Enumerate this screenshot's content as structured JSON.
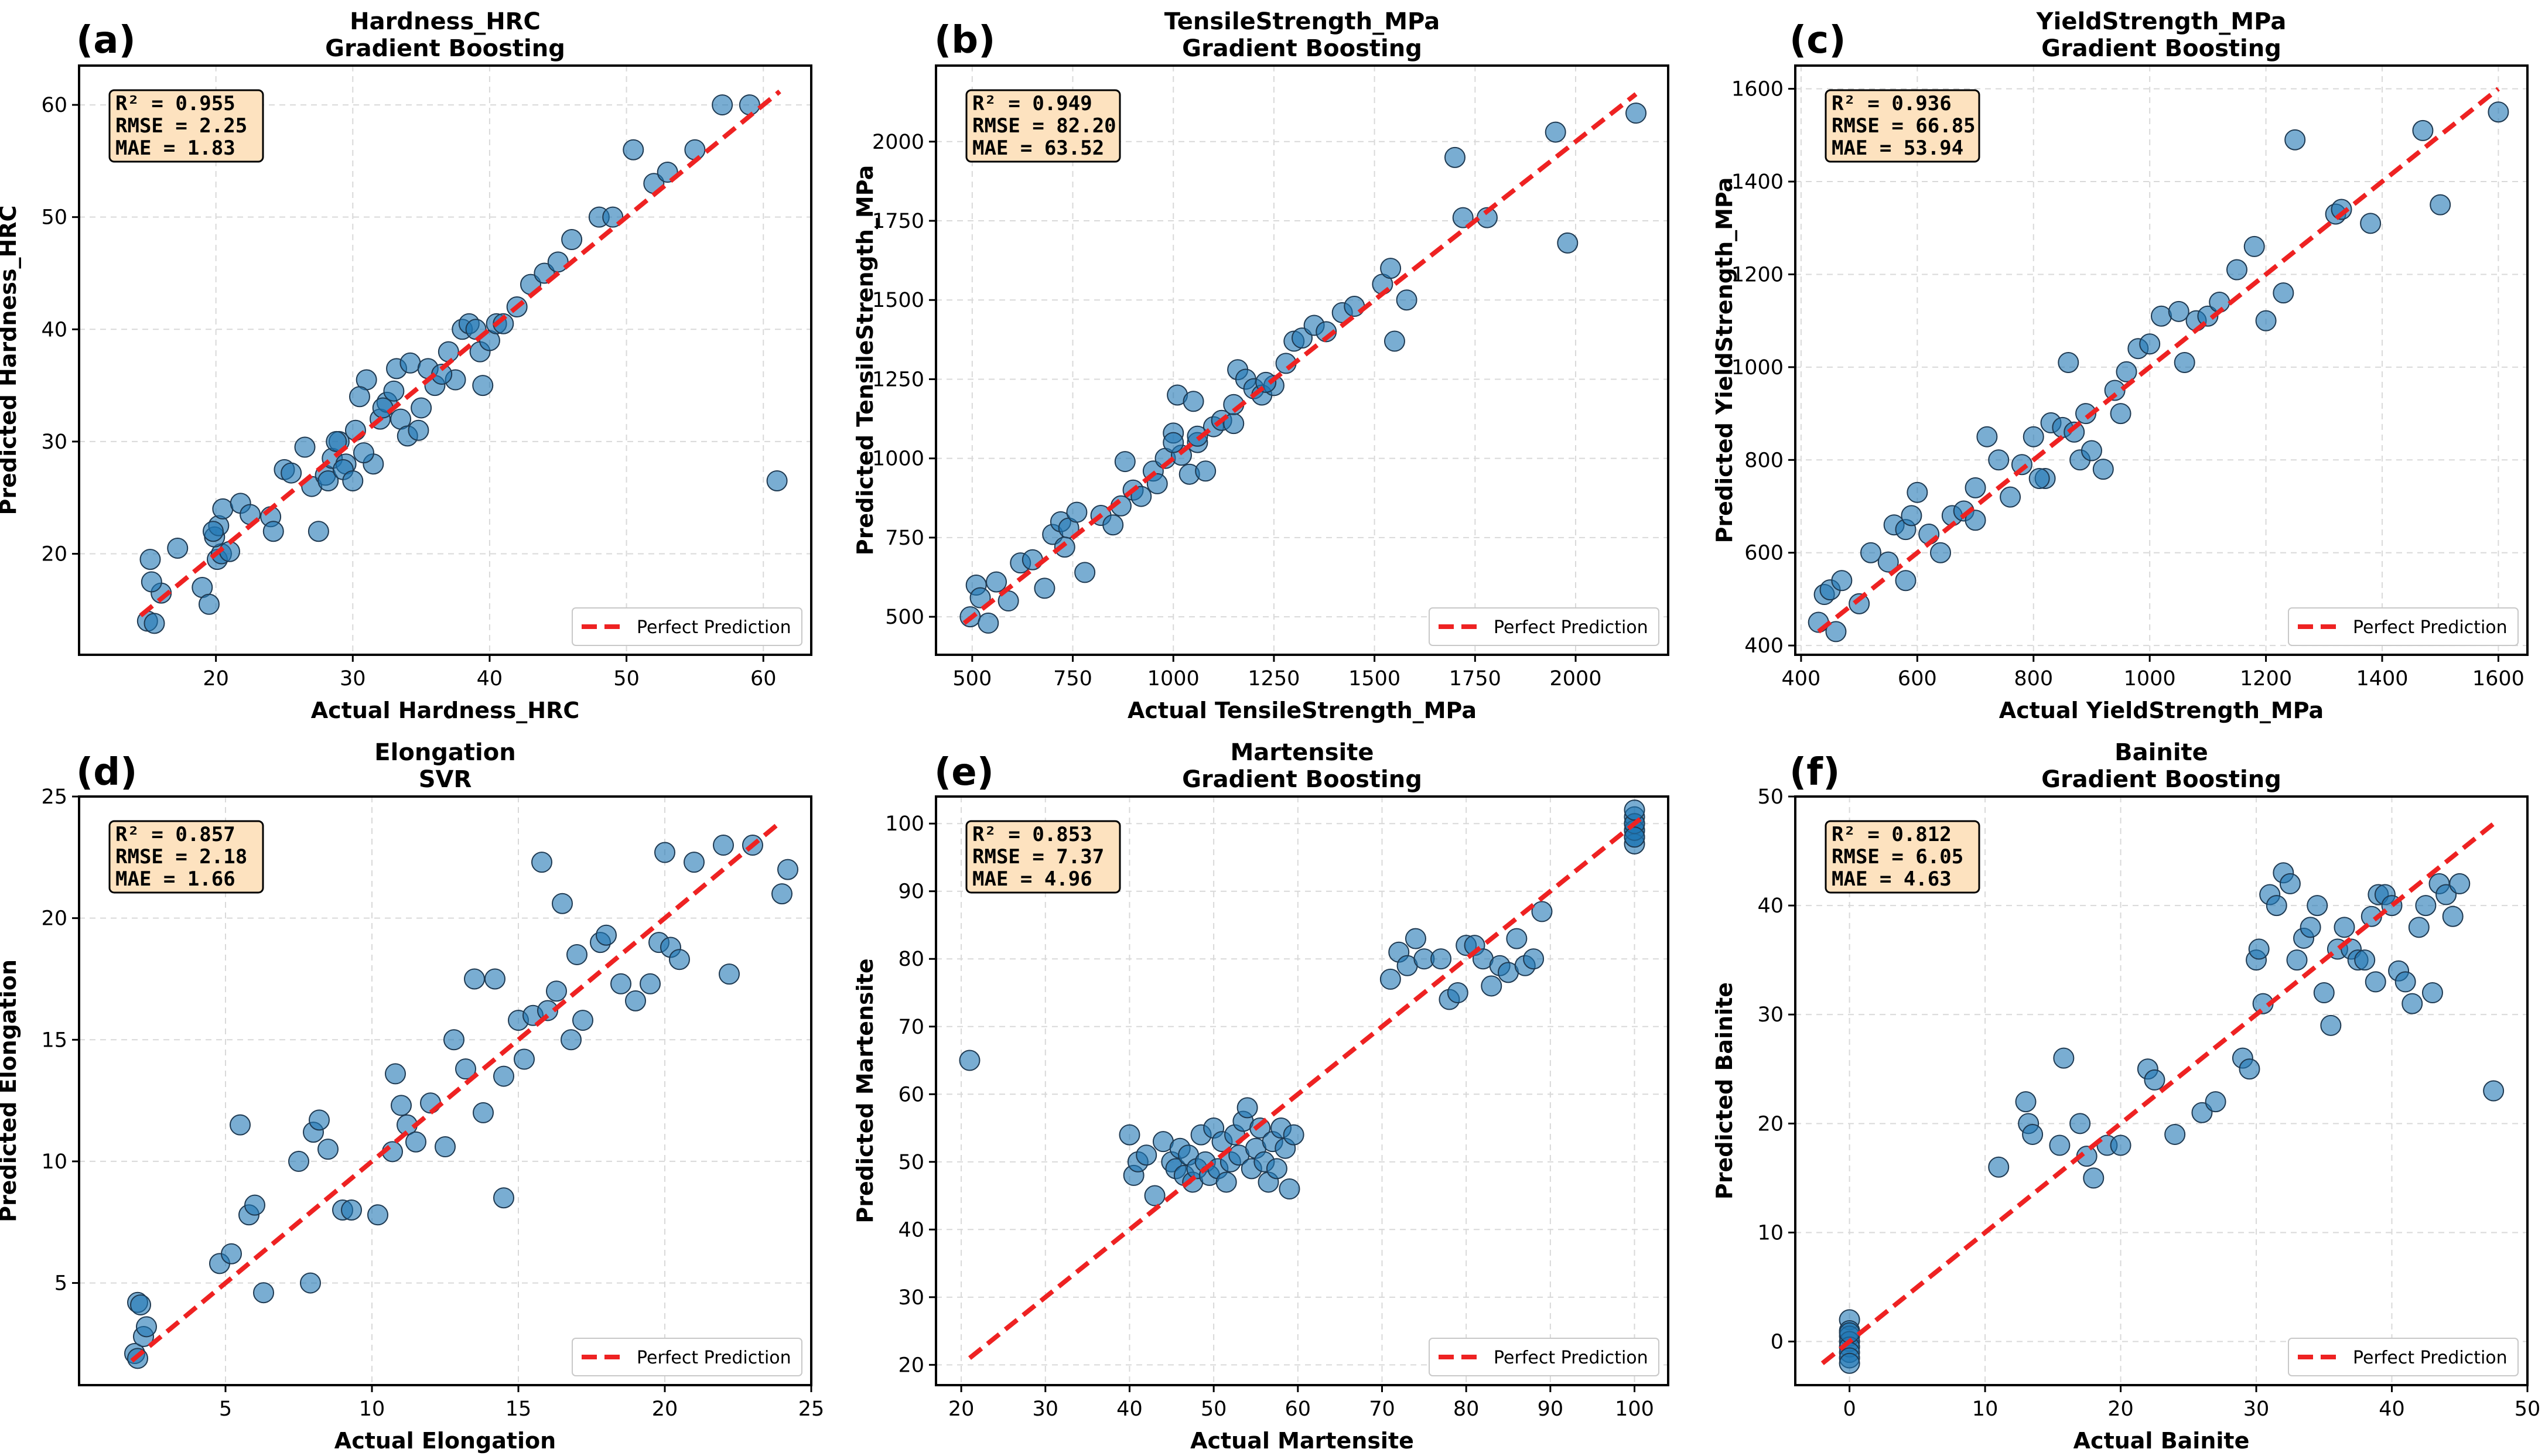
{
  "legend_label": "Perfect Prediction",
  "chart_data": [
    {
      "type": "scatter",
      "panel_label": "(a)",
      "title_line1": "Hardness_HRC",
      "title_line2": "Gradient Boosting",
      "xlabel": "Actual Hardness_HRC",
      "ylabel": "Predicted Hardness_HRC",
      "xlim": [
        10,
        63.5
      ],
      "ylim": [
        11,
        63.5
      ],
      "xticks": [
        20,
        30,
        40,
        50,
        60
      ],
      "yticks": [
        20,
        30,
        40,
        50,
        60
      ],
      "stats": [
        "R² = 0.955",
        "RMSE = 2.25",
        "MAE = 1.83"
      ],
      "ideal_line": [
        14.5,
        61.2
      ],
      "x": [
        15.0,
        15.5,
        16.0,
        15.3,
        15.2,
        17.2,
        19.0,
        20.1,
        20.4,
        21.0,
        19.9,
        20.2,
        19.8,
        19.5,
        20.5,
        21.8,
        22.5,
        24.0,
        24.2,
        25.0,
        25.5,
        26.5,
        27.0,
        28.0,
        28.2,
        28.5,
        29.0,
        29.5,
        29.3,
        30.0,
        30.2,
        31.0,
        30.5,
        31.5,
        32.0,
        32.5,
        33.0,
        33.2,
        33.5,
        34.0,
        34.2,
        35.0,
        35.5,
        36.0,
        37.0,
        37.5,
        38.0,
        38.5,
        39.0,
        39.3,
        39.5,
        40.0,
        40.5,
        41.0,
        42.0,
        43.0,
        44.0,
        45.0,
        46.0,
        48.0,
        49.0,
        50.5,
        52.0,
        53.0,
        55.0,
        57.0,
        59.0,
        61.0,
        27.5,
        28.8,
        30.8,
        32.2,
        34.8,
        36.5
      ],
      "y": [
        14.0,
        13.8,
        16.5,
        17.5,
        19.5,
        20.5,
        17.0,
        19.5,
        20.0,
        20.2,
        21.5,
        22.5,
        22.0,
        15.5,
        24.0,
        24.5,
        23.5,
        23.3,
        22.0,
        27.5,
        27.2,
        29.5,
        26.0,
        27.0,
        26.5,
        28.5,
        30.0,
        28.0,
        27.5,
        26.5,
        31.0,
        35.5,
        34.0,
        28.0,
        32.0,
        33.5,
        34.5,
        36.5,
        32.0,
        30.5,
        37.0,
        33.0,
        36.5,
        35.0,
        38.0,
        35.5,
        40.0,
        40.5,
        40.0,
        38.0,
        35.0,
        39.0,
        40.5,
        40.5,
        42.0,
        44.0,
        45.0,
        46.0,
        48.0,
        50.0,
        50.0,
        56.0,
        53.0,
        54.0,
        56.0,
        60.0,
        60.0,
        26.5,
        22.0,
        30.0,
        29.0,
        33.0,
        31.0,
        36.0
      ]
    },
    {
      "type": "scatter",
      "panel_label": "(b)",
      "title_line1": "TensileStrength_MPa",
      "title_line2": "Gradient Boosting",
      "xlabel": "Actual TensileStrength_MPa",
      "ylabel": "Predicted TensileStrength_MPa",
      "xlim": [
        410,
        2230
      ],
      "ylim": [
        380,
        2240
      ],
      "xticks": [
        500,
        750,
        1000,
        1250,
        1500,
        1750,
        2000
      ],
      "yticks": [
        500,
        750,
        1000,
        1250,
        1500,
        1750,
        2000
      ],
      "stats": [
        "R² = 0.949",
        "RMSE = 82.20",
        "MAE = 63.52"
      ],
      "ideal_line": [
        480,
        2150
      ],
      "x": [
        495,
        510,
        520,
        540,
        560,
        590,
        620,
        650,
        680,
        700,
        720,
        740,
        760,
        780,
        820,
        850,
        880,
        900,
        920,
        950,
        960,
        980,
        1000,
        1010,
        1020,
        1040,
        1050,
        1060,
        1080,
        1100,
        1120,
        1150,
        1160,
        1180,
        1200,
        1220,
        1250,
        1280,
        1300,
        1320,
        1350,
        1380,
        1420,
        1450,
        1520,
        1540,
        1550,
        1580,
        1700,
        1720,
        1780,
        1950,
        1980,
        2150,
        730,
        870,
        1000,
        1060,
        1150,
        1230
      ],
      "y": [
        500,
        600,
        560,
        480,
        610,
        550,
        670,
        680,
        590,
        760,
        800,
        780,
        830,
        640,
        820,
        790,
        990,
        900,
        880,
        960,
        920,
        1000,
        1080,
        1200,
        1010,
        950,
        1180,
        1050,
        960,
        1100,
        1120,
        1110,
        1280,
        1250,
        1220,
        1200,
        1230,
        1300,
        1370,
        1380,
        1420,
        1400,
        1460,
        1480,
        1550,
        1600,
        1370,
        1500,
        1950,
        1760,
        1760,
        2030,
        1680,
        2090,
        720,
        850,
        1050,
        1070,
        1170,
        1240
      ]
    },
    {
      "type": "scatter",
      "panel_label": "(c)",
      "title_line1": "YieldStrength_MPa",
      "title_line2": "Gradient Boosting",
      "xlabel": "Actual YieldStrength_MPa",
      "ylabel": "Predicted YieldStrength_MPa",
      "xlim": [
        390,
        1650
      ],
      "ylim": [
        380,
        1650
      ],
      "xticks": [
        400,
        600,
        800,
        1000,
        1200,
        1400,
        1600
      ],
      "yticks": [
        400,
        600,
        800,
        1000,
        1200,
        1400,
        1600
      ],
      "stats": [
        "R² = 0.936",
        "RMSE = 66.85",
        "MAE = 53.94"
      ],
      "ideal_line": [
        430,
        1600
      ],
      "x": [
        430,
        440,
        450,
        460,
        470,
        500,
        520,
        550,
        560,
        580,
        590,
        600,
        620,
        640,
        660,
        680,
        700,
        720,
        740,
        760,
        780,
        800,
        820,
        830,
        850,
        860,
        870,
        880,
        900,
        920,
        940,
        950,
        960,
        980,
        1000,
        1020,
        1050,
        1080,
        1100,
        1120,
        1150,
        1180,
        1200,
        1230,
        1250,
        1320,
        1330,
        1380,
        1470,
        1500,
        1600,
        580,
        700,
        810,
        890,
        1060
      ],
      "y": [
        450,
        510,
        520,
        430,
        540,
        490,
        600,
        580,
        660,
        650,
        680,
        730,
        640,
        600,
        680,
        690,
        740,
        850,
        800,
        720,
        790,
        850,
        760,
        880,
        870,
        1010,
        860,
        800,
        820,
        780,
        950,
        900,
        990,
        1040,
        1050,
        1110,
        1120,
        1100,
        1110,
        1140,
        1210,
        1260,
        1100,
        1160,
        1490,
        1330,
        1340,
        1310,
        1510,
        1350,
        1550,
        540,
        670,
        760,
        900,
        1010
      ]
    },
    {
      "type": "scatter",
      "panel_label": "(d)",
      "title_line1": "Elongation",
      "title_line2": "SVR",
      "xlabel": "Actual Elongation",
      "ylabel": "Predicted Elongation",
      "xlim": [
        0,
        25
      ],
      "ylim": [
        0.8,
        25
      ],
      "xticks": [
        5,
        10,
        15,
        20,
        25
      ],
      "yticks": [
        5,
        10,
        15,
        20,
        25
      ],
      "stats": [
        "R² = 0.857",
        "RMSE = 2.18",
        "MAE = 1.66"
      ],
      "ideal_line": [
        1.8,
        24.0
      ],
      "x": [
        1.9,
        2.0,
        2.0,
        2.1,
        2.2,
        2.3,
        4.8,
        5.2,
        5.5,
        5.8,
        6.0,
        6.3,
        7.5,
        7.9,
        8.0,
        8.2,
        8.5,
        9.0,
        9.3,
        10.2,
        10.8,
        11.0,
        11.2,
        11.5,
        12.0,
        12.5,
        12.8,
        13.2,
        13.5,
        13.8,
        14.2,
        14.5,
        15.0,
        15.2,
        15.5,
        15.8,
        16.0,
        16.3,
        16.5,
        16.8,
        17.0,
        17.2,
        17.8,
        18.0,
        18.5,
        19.0,
        19.5,
        19.8,
        20.0,
        20.2,
        20.5,
        21.0,
        22.0,
        22.2,
        23.0,
        24.0,
        24.2,
        10.7,
        14.5
      ],
      "y": [
        2.1,
        4.2,
        1.9,
        4.1,
        2.8,
        3.2,
        5.8,
        6.2,
        11.5,
        7.8,
        8.2,
        4.6,
        10.0,
        5.0,
        11.2,
        11.7,
        10.5,
        8.0,
        8.0,
        7.8,
        13.6,
        12.3,
        11.5,
        10.8,
        12.4,
        10.6,
        15.0,
        13.8,
        17.5,
        12.0,
        17.5,
        8.5,
        15.8,
        14.2,
        16.0,
        22.3,
        16.2,
        17.0,
        20.6,
        15.0,
        18.5,
        15.8,
        19.0,
        19.3,
        17.3,
        16.6,
        17.3,
        19.0,
        22.7,
        18.8,
        18.3,
        22.3,
        23.0,
        17.7,
        23.0,
        21.0,
        22.0,
        10.4,
        13.5
      ]
    },
    {
      "type": "scatter",
      "panel_label": "(e)",
      "title_line1": "Martensite",
      "title_line2": "Gradient Boosting",
      "xlabel": "Actual Martensite",
      "ylabel": "Predicted Martensite",
      "xlim": [
        17,
        104
      ],
      "ylim": [
        17,
        104
      ],
      "xticks": [
        20,
        30,
        40,
        50,
        60,
        70,
        80,
        90,
        100
      ],
      "yticks": [
        20,
        30,
        40,
        50,
        60,
        70,
        80,
        90,
        100
      ],
      "stats": [
        "R² = 0.853",
        "RMSE = 7.37",
        "MAE = 4.96"
      ],
      "ideal_line": [
        21,
        101
      ],
      "x": [
        21,
        40,
        40.5,
        41,
        42,
        43,
        44,
        45,
        45.5,
        46,
        46.5,
        47,
        47.5,
        48,
        48.5,
        49,
        49.5,
        50,
        50.5,
        51,
        51.5,
        52,
        52.5,
        53,
        53.5,
        54,
        54.5,
        55,
        55.5,
        56,
        56.5,
        57,
        57.5,
        58,
        58.5,
        59,
        59.5,
        71,
        72,
        73,
        74,
        75,
        77,
        78,
        79,
        80,
        81,
        82,
        83,
        84,
        85,
        86,
        87,
        88,
        89,
        100,
        100,
        100,
        100,
        100,
        100,
        100,
        100,
        100
      ],
      "y": [
        65,
        54,
        48,
        50,
        51,
        45,
        53,
        50,
        49,
        52,
        48,
        51,
        47,
        49,
        54,
        50,
        48,
        55,
        49,
        53,
        47,
        50,
        54,
        51,
        56,
        58,
        49,
        52,
        55,
        50,
        47,
        53,
        49,
        55,
        52,
        46,
        54,
        77,
        81,
        79,
        83,
        80,
        80,
        74,
        75,
        82,
        82,
        80,
        76,
        79,
        78,
        83,
        79,
        80,
        87,
        99,
        100,
        101,
        98,
        97,
        99,
        100,
        98,
        102
      ]
    },
    {
      "type": "scatter",
      "panel_label": "(f)",
      "title_line1": "Bainite",
      "title_line2": "Gradient Boosting",
      "xlabel": "Actual Bainite",
      "ylabel": "Predicted Bainite",
      "xlim": [
        -4,
        50
      ],
      "ylim": [
        -4,
        50
      ],
      "xticks": [
        0,
        10,
        20,
        30,
        40,
        50
      ],
      "yticks": [
        0,
        10,
        20,
        30,
        40,
        50
      ],
      "stats": [
        "R² = 0.812",
        "RMSE = 6.05",
        "MAE = 4.63"
      ],
      "ideal_line": [
        -2,
        47.5
      ],
      "x": [
        0,
        0,
        0,
        0,
        0,
        0,
        0,
        0,
        0,
        11,
        13,
        13.2,
        13.5,
        15.5,
        15.8,
        17,
        17.5,
        18,
        19,
        20,
        22,
        22.5,
        24,
        26,
        27,
        29,
        29.5,
        30,
        30.5,
        31,
        31.5,
        32,
        32.5,
        33,
        33.5,
        34,
        34.5,
        35,
        35.5,
        36,
        36.5,
        37,
        37.5,
        38,
        38.5,
        39,
        39.5,
        40,
        40.5,
        41,
        41.5,
        42,
        42.5,
        43,
        43.5,
        44,
        44.5,
        45,
        47.5,
        30.2,
        38.8
      ],
      "y": [
        2,
        1,
        0.5,
        0,
        -0.5,
        -1,
        -1.5,
        -2,
        0.8,
        16,
        22,
        20,
        19,
        18,
        26,
        20,
        17,
        15,
        18,
        18,
        25,
        24,
        19,
        21,
        22,
        26,
        25,
        35,
        31,
        41,
        40,
        43,
        42,
        35,
        37,
        38,
        40,
        32,
        29,
        36,
        38,
        36,
        35,
        35,
        39,
        41,
        41,
        40,
        34,
        33,
        31,
        38,
        40,
        32,
        42,
        41,
        39,
        42,
        23,
        36,
        33
      ]
    }
  ]
}
